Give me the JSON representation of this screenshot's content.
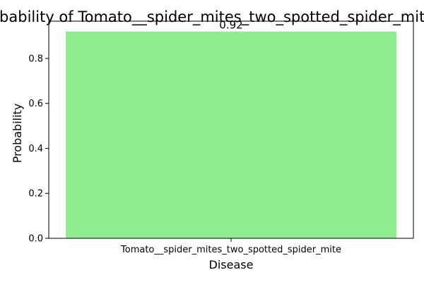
{
  "chart_data": {
    "type": "bar",
    "title": "Probability of Tomato__spider_mites_two_spotted_spider_mite",
    "xlabel": "Disease",
    "ylabel": "Probability",
    "categories": [
      "Tomato__spider_mites_two_spotted_spider_mite"
    ],
    "values": [
      0.92
    ],
    "data_labels": [
      "0.92"
    ],
    "ylim": [
      0,
      0.966
    ],
    "yticks": [
      0.0,
      0.2,
      0.4,
      0.6,
      0.8
    ],
    "ytick_labels": [
      "0.0",
      "0.2",
      "0.4",
      "0.6",
      "0.8"
    ],
    "bar_color": "#90ee90",
    "grid": false,
    "legend": "none"
  }
}
